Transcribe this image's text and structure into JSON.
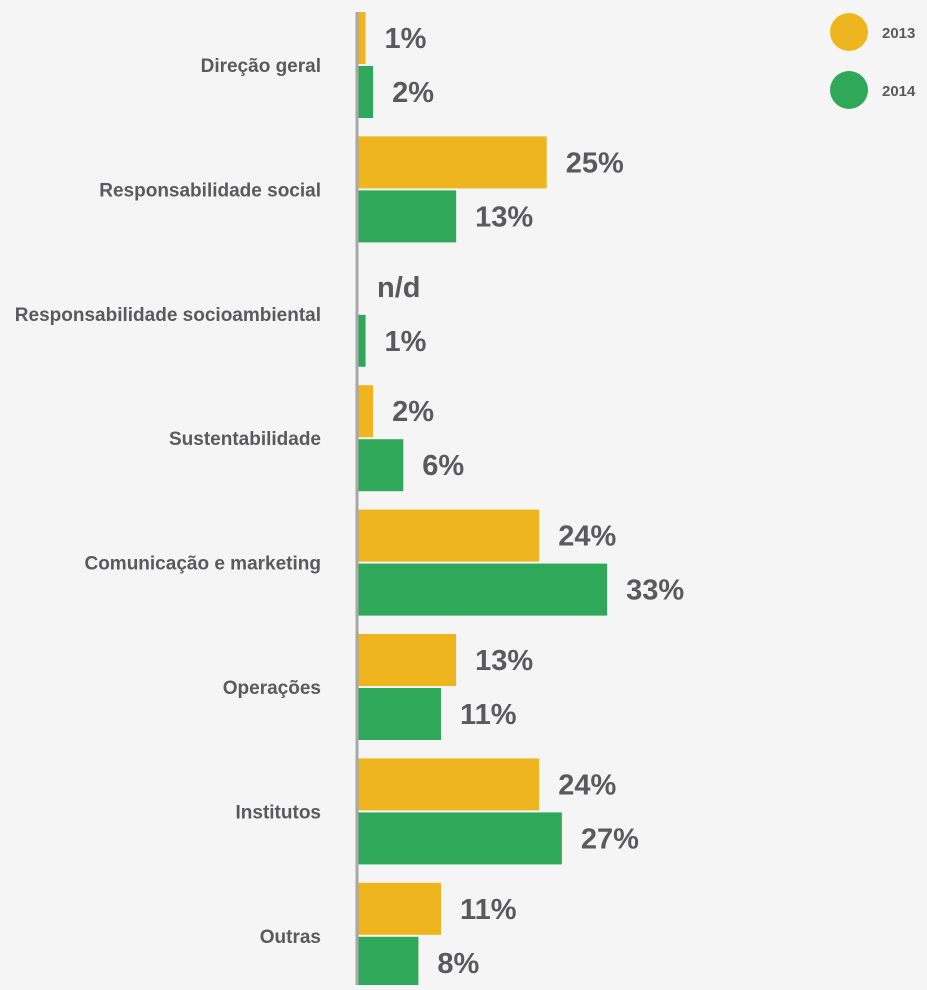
{
  "chart_data": {
    "type": "bar",
    "orientation": "horizontal",
    "categories": [
      "Direção geral",
      "Responsabilidade social",
      "Responsabilidade socioambiental",
      "Sustentabilidade",
      "Comunicação e marketing",
      "Operações",
      "Institutos",
      "Outras"
    ],
    "series": [
      {
        "name": "2013",
        "color": "#eeb51e",
        "values": [
          1,
          25,
          null,
          2,
          24,
          13,
          24,
          11
        ],
        "labels": [
          "1%",
          "25%",
          "n/d",
          "2%",
          "24%",
          "13%",
          "24%",
          "11%"
        ]
      },
      {
        "name": "2014",
        "color": "#2fa85a",
        "values": [
          2,
          13,
          1,
          6,
          33,
          11,
          27,
          8
        ],
        "labels": [
          "2%",
          "13%",
          "1%",
          "6%",
          "33%",
          "11%",
          "27%",
          "8%"
        ]
      }
    ],
    "unit": "%",
    "xlim": [
      0,
      35
    ],
    "axis_color": "#a8a8a8",
    "text_color": "#5a5a5c",
    "background": "#f4f5f4",
    "legend_position": "top-right",
    "grid": false
  }
}
